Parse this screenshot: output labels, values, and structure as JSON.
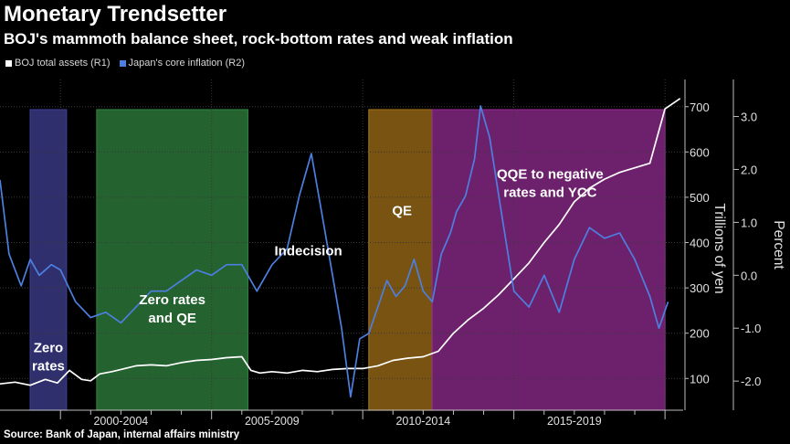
{
  "header": {
    "title": "Monetary Trendsetter",
    "subtitle": "BOJ's mammoth balance sheet, rock-bottom rates and weak inflation"
  },
  "legend": [
    {
      "label": "BOJ total assets (R1)",
      "color": "#ffffff"
    },
    {
      "label": "Japan's core inflation  (R2)",
      "color": "#4d7fe0"
    }
  ],
  "source": "Source: Bank of Japan, internal affairs ministry",
  "chart_data": {
    "type": "line",
    "title": "Monetary Trendsetter",
    "xlim": [
      1998.0,
      2020.6
    ],
    "x_tick_labels": [
      {
        "label": "2000-2004",
        "x": 2002.0
      },
      {
        "label": "2005-2009",
        "x": 2007.0
      },
      {
        "label": "2010-2014",
        "x": 2012.0
      },
      {
        "label": "2015-2019",
        "x": 2017.0
      }
    ],
    "x_tick_marks": [
      2000,
      2001,
      2002,
      2003,
      2004,
      2005,
      2006,
      2007,
      2008,
      2009,
      2010,
      2011,
      2012,
      2013,
      2014,
      2015,
      2016,
      2017,
      2018,
      2019,
      2020
    ],
    "axes": {
      "r1": {
        "label": "Trillions of yen",
        "range": [
          30,
          760
        ],
        "ticks": [
          100,
          200,
          300,
          400,
          500,
          600,
          700
        ]
      },
      "r2": {
        "label": "Percent",
        "range": [
          -2.55,
          3.7
        ],
        "ticks": [
          -2.0,
          -1.0,
          0.0,
          1.0,
          2.0,
          3.0
        ],
        "tick_labels": [
          "-2.0",
          "-1.0",
          "0.0",
          "1.0",
          "2.0",
          "3.0"
        ]
      }
    },
    "grid": {
      "horizontal": true,
      "vertical": true
    },
    "regimes": [
      {
        "label": "Zero rates",
        "start": 1999.0,
        "end": 2000.2,
        "color": "#3c3c8c"
      },
      {
        "label": "Zero rates and QE",
        "start": 2001.2,
        "end": 2006.2,
        "color": "#2e7d3e"
      },
      {
        "label": "Indecision",
        "start": 2006.2,
        "end": 2010.2,
        "color": ""
      },
      {
        "label": "QE",
        "start": 2010.2,
        "end": 2012.3,
        "color": "#9a6a16"
      },
      {
        "label": "QQE to negative rates and YCC",
        "start": 2012.3,
        "end": 2020.0,
        "color": "#8c2a8c"
      }
    ],
    "series": [
      {
        "name": "BOJ total assets",
        "axis": "r1",
        "color": "#ffffff",
        "x": [
          1998.0,
          1998.5,
          1999.0,
          1999.5,
          1999.9,
          2000.3,
          2000.7,
          2001.0,
          2001.3,
          2001.7,
          2002.0,
          2002.5,
          2003.0,
          2003.5,
          2004.0,
          2004.5,
          2005.0,
          2005.5,
          2006.0,
          2006.3,
          2006.6,
          2007.0,
          2007.5,
          2008.0,
          2008.5,
          2009.0,
          2009.5,
          2010.0,
          2010.5,
          2011.0,
          2011.5,
          2012.0,
          2012.5,
          2013.0,
          2013.5,
          2014.0,
          2014.5,
          2015.0,
          2015.5,
          2016.0,
          2016.5,
          2017.0,
          2017.5,
          2018.0,
          2018.5,
          2019.0,
          2019.5,
          2020.0,
          2020.5
        ],
        "values": [
          88,
          92,
          85,
          98,
          90,
          118,
          98,
          95,
          110,
          115,
          120,
          128,
          130,
          128,
          135,
          140,
          142,
          146,
          148,
          118,
          112,
          115,
          112,
          118,
          115,
          120,
          122,
          122,
          128,
          140,
          145,
          148,
          160,
          200,
          230,
          255,
          285,
          320,
          355,
          400,
          440,
          490,
          520,
          540,
          555,
          565,
          575,
          695,
          718
        ]
      },
      {
        "name": "Japan's core inflation",
        "axis": "r2",
        "color": "#4d7fe0",
        "x": [
          1998.0,
          1998.3,
          1998.7,
          1999.0,
          1999.3,
          1999.7,
          2000.0,
          2000.5,
          2001.0,
          2001.5,
          2002.0,
          2002.5,
          2003.0,
          2003.5,
          2004.0,
          2004.5,
          2005.0,
          2005.5,
          2006.0,
          2006.5,
          2007.0,
          2007.5,
          2007.9,
          2008.3,
          2008.7,
          2009.0,
          2009.3,
          2009.6,
          2009.9,
          2010.2,
          2010.5,
          2010.8,
          2011.1,
          2011.4,
          2011.7,
          2012.0,
          2012.3,
          2012.6,
          2012.9,
          2013.1,
          2013.4,
          2013.7,
          2013.9,
          2014.2,
          2014.5,
          2015.0,
          2015.5,
          2016.0,
          2016.5,
          2017.0,
          2017.5,
          2018.0,
          2018.5,
          2019.0,
          2019.5,
          2019.8,
          2020.1
        ],
        "values": [
          1.8,
          0.4,
          -0.2,
          0.3,
          0.0,
          0.2,
          0.1,
          -0.5,
          -0.8,
          -0.7,
          -0.9,
          -0.6,
          -0.3,
          -0.3,
          -0.1,
          0.1,
          0.0,
          0.2,
          0.2,
          -0.3,
          0.2,
          0.5,
          1.5,
          2.3,
          1.0,
          0.0,
          -1.0,
          -2.3,
          -1.2,
          -1.1,
          -0.6,
          -0.1,
          -0.4,
          -0.2,
          0.3,
          -0.3,
          -0.5,
          0.4,
          0.8,
          1.2,
          1.5,
          2.2,
          3.2,
          2.6,
          1.5,
          -0.3,
          -0.6,
          0.0,
          -0.7,
          0.3,
          0.9,
          0.7,
          0.8,
          0.3,
          -0.4,
          -1.0,
          -0.5
        ]
      }
    ],
    "annotations": [
      {
        "text": "Zero\nrates",
        "x": 1999.6,
        "y": -1.45,
        "axis": "r2"
      },
      {
        "text": "Zero rates\nand QE",
        "x": 2003.7,
        "y": -0.55,
        "axis": "r2"
      },
      {
        "text": "Indecision",
        "x": 2008.2,
        "y": 0.38,
        "axis": "r2"
      },
      {
        "text": "QE",
        "x": 2011.3,
        "y": 1.14,
        "axis": "r2"
      },
      {
        "text": "QQE to negative\nrates and YCC",
        "x": 2016.2,
        "y": 1.83,
        "axis": "r2"
      }
    ]
  }
}
